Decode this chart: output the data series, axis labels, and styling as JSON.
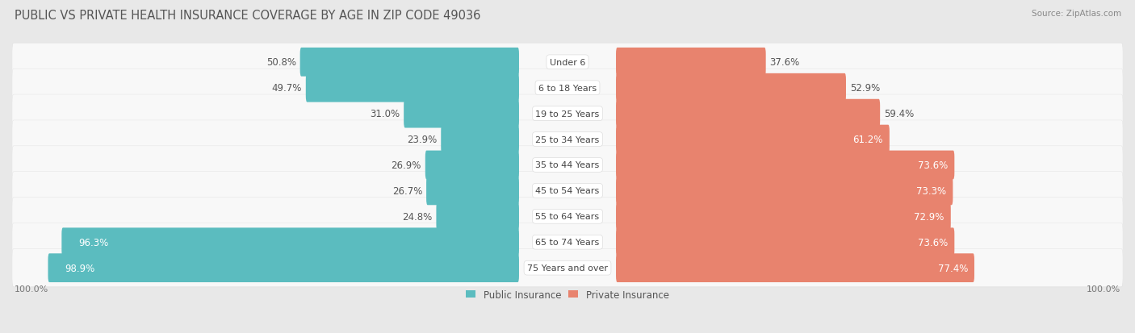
{
  "title": "PUBLIC VS PRIVATE HEALTH INSURANCE COVERAGE BY AGE IN ZIP CODE 49036",
  "source": "Source: ZipAtlas.com",
  "categories": [
    "Under 6",
    "6 to 18 Years",
    "19 to 25 Years",
    "25 to 34 Years",
    "35 to 44 Years",
    "45 to 54 Years",
    "55 to 64 Years",
    "65 to 74 Years",
    "75 Years and over"
  ],
  "public_values": [
    50.8,
    49.7,
    31.0,
    23.9,
    26.9,
    26.7,
    24.8,
    96.3,
    98.9
  ],
  "private_values": [
    37.6,
    52.9,
    59.4,
    61.2,
    73.6,
    73.3,
    72.9,
    73.6,
    77.4
  ],
  "public_color": "#5bbcbf",
  "private_color": "#e8836e",
  "bg_color": "#e8e8e8",
  "row_color": "#f5f5f5",
  "title_fontsize": 10.5,
  "label_fontsize": 8.5,
  "value_fontsize": 8.5,
  "axis_label_fontsize": 8,
  "max_value": 100.0,
  "center_label_white": true
}
